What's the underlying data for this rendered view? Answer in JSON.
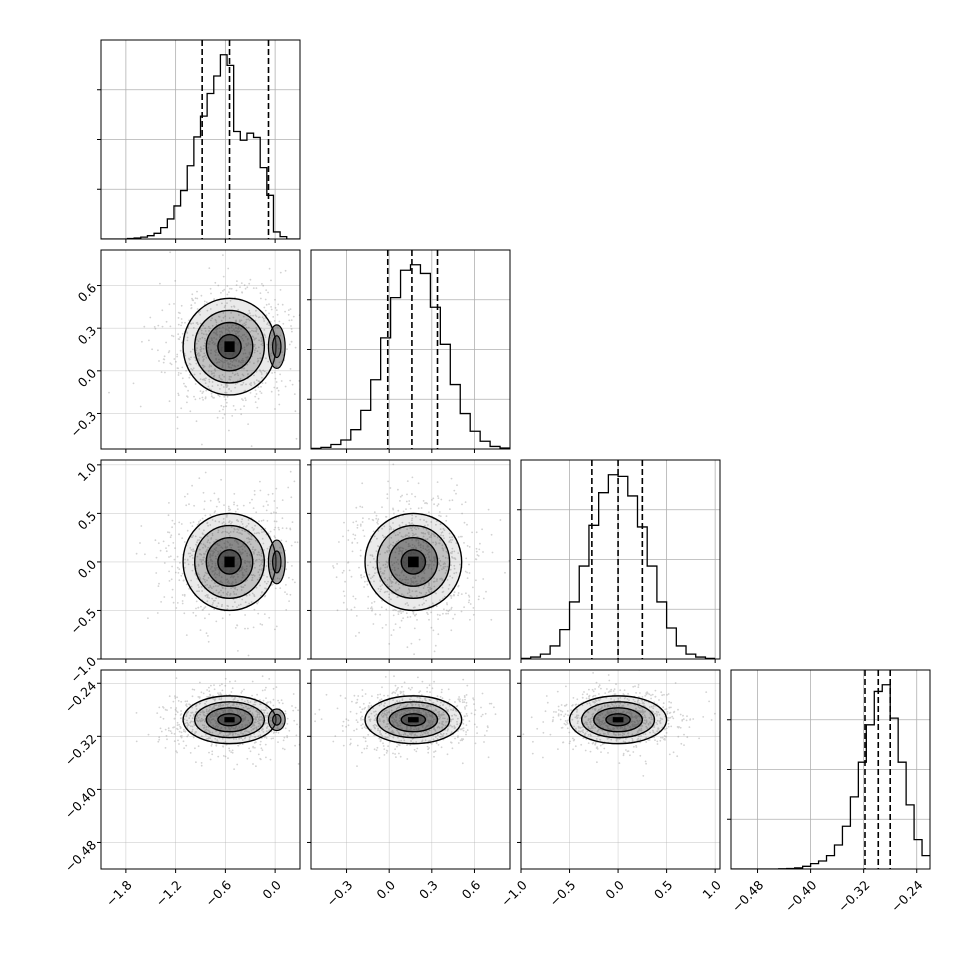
{
  "chart_data": {
    "type": "corner",
    "grid": true,
    "colors": {
      "line": "#000000",
      "grid": "#b0b0b0",
      "scatter": "#7f7f7f",
      "fill": "#333333"
    },
    "parameters": [
      {
        "range": [
          -2.1,
          0.3
        ],
        "ticks": [
          -1.8,
          -1.2,
          -0.6,
          0.0
        ],
        "tick_labels": [
          "−1.8",
          "−1.2",
          "−0.6",
          "0.0"
        ],
        "quantiles": [
          -0.88,
          -0.55,
          -0.08
        ],
        "center": -0.55,
        "sigma": 0.28,
        "mode2": 0.02
      },
      {
        "range": [
          -0.55,
          0.85
        ],
        "ticks": [
          -0.3,
          0.0,
          0.3,
          0.6
        ],
        "tick_labels": [
          "−0.3",
          "0.0",
          "0.3",
          "0.6"
        ],
        "quantiles": [
          -0.01,
          0.16,
          0.34
        ],
        "center": 0.17,
        "sigma": 0.17
      },
      {
        "range": [
          -1.0,
          1.05
        ],
        "ticks": [
          -1.0,
          -0.5,
          0.0,
          0.5,
          1.0
        ],
        "tick_labels": [
          "−1.0",
          "−0.5",
          "0.0",
          "0.5",
          "1.0"
        ],
        "quantiles": [
          -0.27,
          0.0,
          0.25
        ],
        "center": 0.0,
        "sigma": 0.25
      },
      {
        "range": [
          -0.52,
          -0.22
        ],
        "ticks": [
          -0.48,
          -0.4,
          -0.32,
          -0.24
        ],
        "tick_labels": [
          "−0.48",
          "−0.40",
          "−0.32",
          "−0.24"
        ],
        "quantiles": [
          -0.318,
          -0.298,
          -0.28
        ],
        "center": -0.295,
        "sigma": 0.018
      }
    ],
    "histograms": [
      {
        "bins": [
          -2.1,
          -2.02,
          -1.94,
          -1.86,
          -1.78,
          -1.7,
          -1.62,
          -1.54,
          -1.46,
          -1.38,
          -1.3,
          -1.22,
          -1.14,
          -1.06,
          -0.98,
          -0.9,
          -0.82,
          -0.74,
          -0.66,
          -0.58,
          -0.5,
          -0.42,
          -0.34,
          -0.26,
          -0.18,
          -0.1,
          -0.02,
          0.06,
          0.14,
          0.22,
          0.3
        ],
        "counts": [
          0,
          0,
          0,
          0,
          2,
          4,
          8,
          14,
          24,
          48,
          85,
          140,
          205,
          310,
          432,
          520,
          616,
          690,
          780,
          735,
          455,
          418,
          448,
          430,
          302,
          185,
          30,
          10,
          0,
          0
        ]
      },
      {
        "bins": [
          -0.55,
          -0.48,
          -0.41,
          -0.34,
          -0.27,
          -0.2,
          -0.13,
          -0.06,
          0.01,
          0.08,
          0.15,
          0.22,
          0.29,
          0.36,
          0.43,
          0.5,
          0.57,
          0.64,
          0.71,
          0.78,
          0.85
        ],
        "counts": [
          2,
          5,
          14,
          28,
          60,
          120,
          215,
          345,
          470,
          555,
          572,
          545,
          440,
          325,
          200,
          110,
          55,
          24,
          8,
          3
        ]
      },
      {
        "bins": [
          -1.0,
          -0.9,
          -0.8,
          -0.7,
          -0.6,
          -0.5,
          -0.4,
          -0.3,
          -0.2,
          -0.1,
          0.0,
          0.1,
          0.2,
          0.3,
          0.4,
          0.5,
          0.6,
          0.7,
          0.8,
          0.9,
          1.0
        ],
        "counts": [
          2,
          6,
          15,
          40,
          90,
          175,
          285,
          410,
          510,
          565,
          560,
          500,
          405,
          285,
          175,
          95,
          40,
          15,
          6,
          2
        ]
      },
      {
        "bins": [
          -0.52,
          -0.508,
          -0.496,
          -0.484,
          -0.472,
          -0.46,
          -0.448,
          -0.436,
          -0.424,
          -0.412,
          -0.4,
          -0.388,
          -0.376,
          -0.364,
          -0.352,
          -0.34,
          -0.328,
          -0.316,
          -0.304,
          -0.292,
          -0.28,
          -0.268,
          -0.256,
          -0.244,
          -0.232,
          -0.22
        ],
        "counts": [
          0,
          0,
          0,
          0,
          0,
          0,
          1,
          2,
          4,
          10,
          20,
          30,
          50,
          90,
          160,
          270,
          400,
          540,
          665,
          690,
          565,
          400,
          240,
          110,
          50
        ]
      }
    ]
  }
}
